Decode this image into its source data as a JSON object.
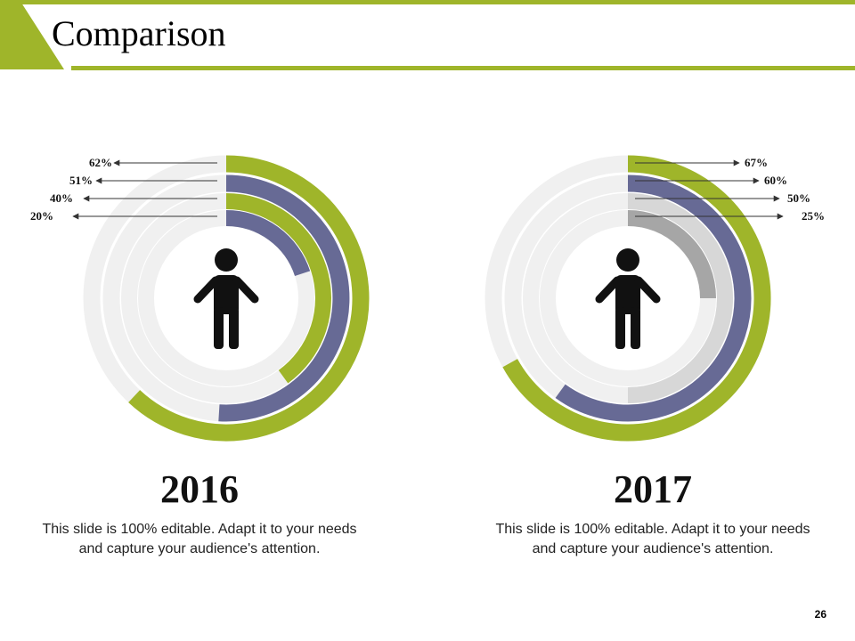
{
  "slide": {
    "title": "Comparison",
    "page_number": "26",
    "colors": {
      "accent_green": "#9fb52a",
      "slate_blue": "#676a95",
      "light_gray": "#d7d7d7",
      "mid_gray": "#a6a6a6",
      "track_gray": "#f0f0f0"
    },
    "icon": "person-icon"
  },
  "chart_data": [
    {
      "type": "radial-bar",
      "year": "2016",
      "description": "This slide is 100% editable. Adapt it to your needs and capture your audience's attention.",
      "rings": [
        {
          "label": "62%",
          "value": 62,
          "color": "#9fb52a"
        },
        {
          "label": "51%",
          "value": 51,
          "color": "#676a95"
        },
        {
          "label": "40%",
          "value": 40,
          "color": "#9fb52a"
        },
        {
          "label": "20%",
          "value": 20,
          "color": "#676a95"
        }
      ],
      "label_side": "left",
      "max": 100
    },
    {
      "type": "radial-bar",
      "year": "2017",
      "description": "This slide is 100% editable. Adapt it to your needs and capture your audience's attention.",
      "rings": [
        {
          "label": "67%",
          "value": 67,
          "color": "#9fb52a"
        },
        {
          "label": "60%",
          "value": 60,
          "color": "#676a95"
        },
        {
          "label": "50%",
          "value": 50,
          "color": "#d7d7d7"
        },
        {
          "label": "25%",
          "value": 25,
          "color": "#a6a6a6"
        }
      ],
      "label_side": "right",
      "max": 100
    }
  ]
}
